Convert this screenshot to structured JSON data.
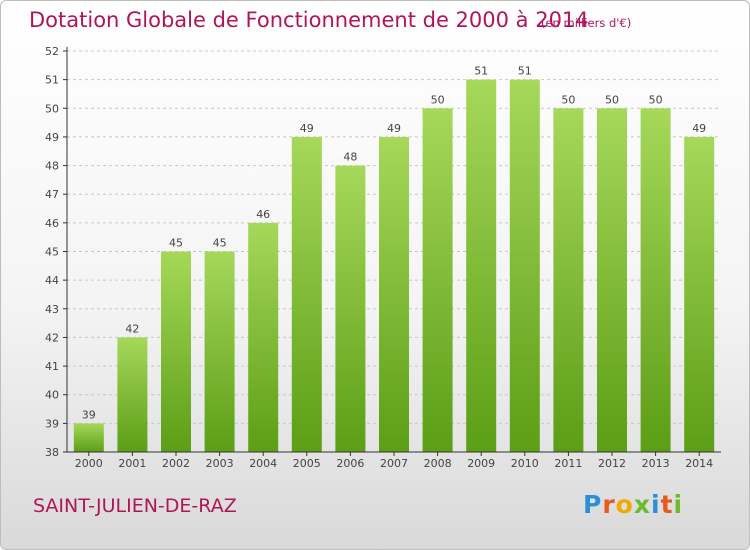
{
  "title": "Dotation Globale de Fonctionnement de 2000 à 2014",
  "subtitle": "(en milliers d'€)",
  "commune": "SAINT-JULIEN-DE-RAZ",
  "logo": {
    "letters": [
      "P",
      "r",
      "o",
      "x",
      "i",
      "t",
      "i"
    ],
    "colors": [
      "#2a8fd6",
      "#e55b1f",
      "#f2a900",
      "#6dbb2c",
      "#2a8fd6",
      "#e55b1f",
      "#6dbb2c"
    ]
  },
  "colors": {
    "bar_top": "#a6d85a",
    "bar_bottom": "#5c9e16",
    "grid": "#c8c8c8",
    "axis": "#333333",
    "text": "#444444",
    "title": "#b0155a"
  },
  "chart_data": {
    "type": "bar",
    "categories": [
      "2000",
      "2001",
      "2002",
      "2003",
      "2004",
      "2005",
      "2006",
      "2007",
      "2008",
      "2009",
      "2010",
      "2011",
      "2012",
      "2013",
      "2014"
    ],
    "values": [
      39,
      42,
      45,
      45,
      46,
      49,
      48,
      49,
      50,
      51,
      51,
      50,
      50,
      50,
      49
    ],
    "title": "Dotation Globale de Fonctionnement de 2000 à 2014",
    "subtitle": "(en milliers d'€)",
    "xlabel": "",
    "ylabel": "",
    "ylim": [
      38,
      52
    ],
    "yticks": [
      38,
      39,
      40,
      41,
      42,
      43,
      44,
      45,
      46,
      47,
      48,
      49,
      50,
      51,
      52
    ],
    "grid": true,
    "data_labels": true
  }
}
